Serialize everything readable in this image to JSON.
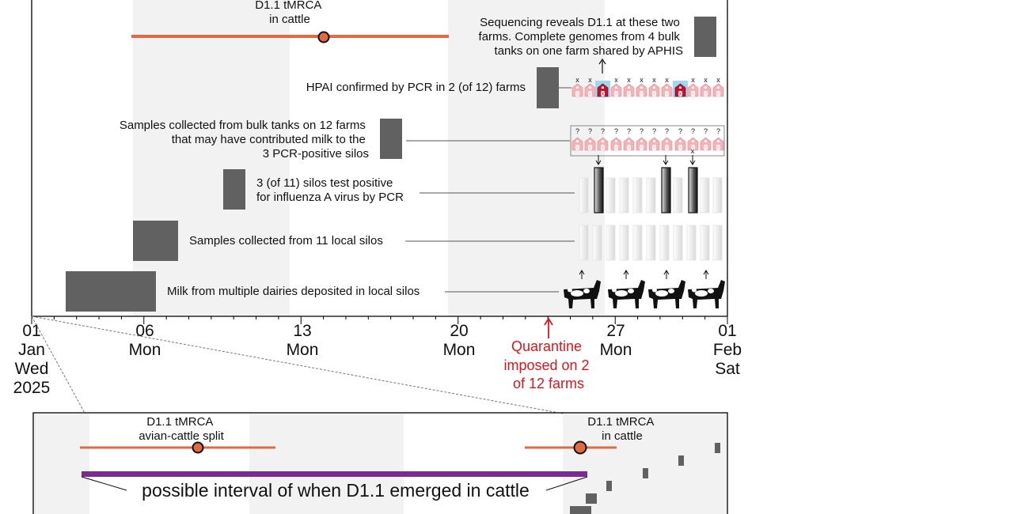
{
  "top_panel": {
    "tmrca_label": [
      "D1.1 tMRCA",
      "in cattle"
    ],
    "events": [
      {
        "id": "sequencing",
        "lines": [
          "Sequencing reveals D1.1 at these two",
          "farms. Complete genomes from 4 bulk",
          "tanks on one farm shared by APHIS"
        ]
      },
      {
        "id": "hpai",
        "lines": [
          "HPAI confirmed by PCR in 2 (of 12) farms"
        ]
      },
      {
        "id": "bulk",
        "lines": [
          "Samples collected from bulk tanks on 12 farms",
          "that may have contributed milk to the",
          "3 PCR-positive silos"
        ]
      },
      {
        "id": "silos_pos",
        "lines": [
          "3 (of 11) silos test positive",
          "for influenza A virus by PCR"
        ]
      },
      {
        "id": "silos_collect",
        "lines": [
          "Samples collected from 11 local silos"
        ]
      },
      {
        "id": "milk",
        "lines": [
          "Milk from multiple dairies deposited in local silos"
        ]
      }
    ],
    "farm_marks": [
      "x",
      "?"
    ]
  },
  "axis": {
    "ticks": [
      {
        "lines": [
          "01",
          "Jan",
          "Wed",
          "2025"
        ]
      },
      {
        "lines": [
          "06",
          "Mon"
        ]
      },
      {
        "lines": [
          "13",
          "Mon"
        ]
      },
      {
        "lines": [
          "20",
          "Mon"
        ]
      },
      {
        "lines": [
          "27",
          "Mon"
        ]
      },
      {
        "lines": [
          "01",
          "Feb",
          "Sat"
        ]
      }
    ],
    "quarantine": [
      "Quarantine",
      "imposed on 2",
      "of 12 farms"
    ]
  },
  "bottom_panel": {
    "split_label": [
      "D1.1 tMRCA",
      "avian-cattle split"
    ],
    "cattle_label": [
      "D1.1 tMRCA",
      "in cattle"
    ],
    "interval_label": "possible interval of when D1.1 emerged in cattle"
  },
  "colors": {
    "tmrca": "#e06a45",
    "interval": "#7b2a8f",
    "box": "#616161",
    "quarantine": "#e0141b",
    "shade": "#f2f2f2",
    "barn": "#f4b3b8",
    "barn_positive": "#c8102e"
  }
}
